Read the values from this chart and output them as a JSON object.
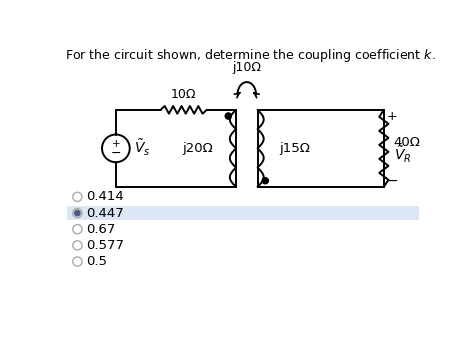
{
  "title": "For the circuit shown, determine the coupling coefficient $k$.",
  "title_fontsize": 9,
  "bg_color": "#ffffff",
  "resistor_label": "10Ω",
  "j20_label": "j20Ω",
  "j15_label": "j15Ω",
  "j40_label": "40Ω",
  "mutual_label": "j10Ω",
  "vs_label": "$\\tilde{V}_s$",
  "vr_label": "$\\tilde{V}_R$",
  "choices": [
    {
      "value": "0.414",
      "selected": false
    },
    {
      "value": "0.447",
      "selected": true
    },
    {
      "value": "0.67",
      "selected": false
    },
    {
      "value": "0.577",
      "selected": false
    },
    {
      "value": "0.5",
      "selected": false
    }
  ],
  "selected_bg": "#dce6f5"
}
